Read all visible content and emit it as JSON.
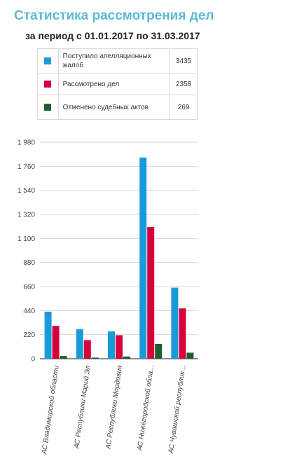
{
  "header": {
    "title": "Статистика рассмотрения дел",
    "period": "за период с 01.01.2017 по 31.03.2017"
  },
  "legend": [
    {
      "label": "Поступило апелляционных жалоб",
      "value": "3435",
      "color": "#1a9ad9"
    },
    {
      "label": "Рассмотрено дел",
      "value": "2358",
      "color": "#d6033b"
    },
    {
      "label": "Отменено судебных актов",
      "value": "269",
      "color": "#1e5f31"
    }
  ],
  "chart_data": {
    "type": "bar",
    "categories": [
      "АС Владимирской области",
      "АС Республики Марий Эл",
      "АС Республики Мордовия",
      "АС Нижегородской обла...",
      "АС Чувашской республик..."
    ],
    "series": [
      {
        "name": "Поступило апелляционных жалоб",
        "color": "#1a9ad9",
        "values": [
          430,
          270,
          250,
          1840,
          650
        ]
      },
      {
        "name": "Рассмотрено дел",
        "color": "#d6033b",
        "values": [
          300,
          170,
          215,
          1205,
          460
        ]
      },
      {
        "name": "Отменено судебных актов",
        "color": "#1e5f31",
        "values": [
          25,
          10,
          20,
          135,
          55
        ]
      }
    ],
    "ylim": [
      0,
      1980
    ],
    "yticks": [
      0,
      220,
      440,
      660,
      880,
      1100,
      1320,
      1540,
      1760,
      1980
    ],
    "ytick_labels": [
      "0",
      "220",
      "440",
      "660",
      "880",
      "1 100",
      "1 320",
      "1 540",
      "1 760",
      "1 980"
    ],
    "grid": true
  }
}
